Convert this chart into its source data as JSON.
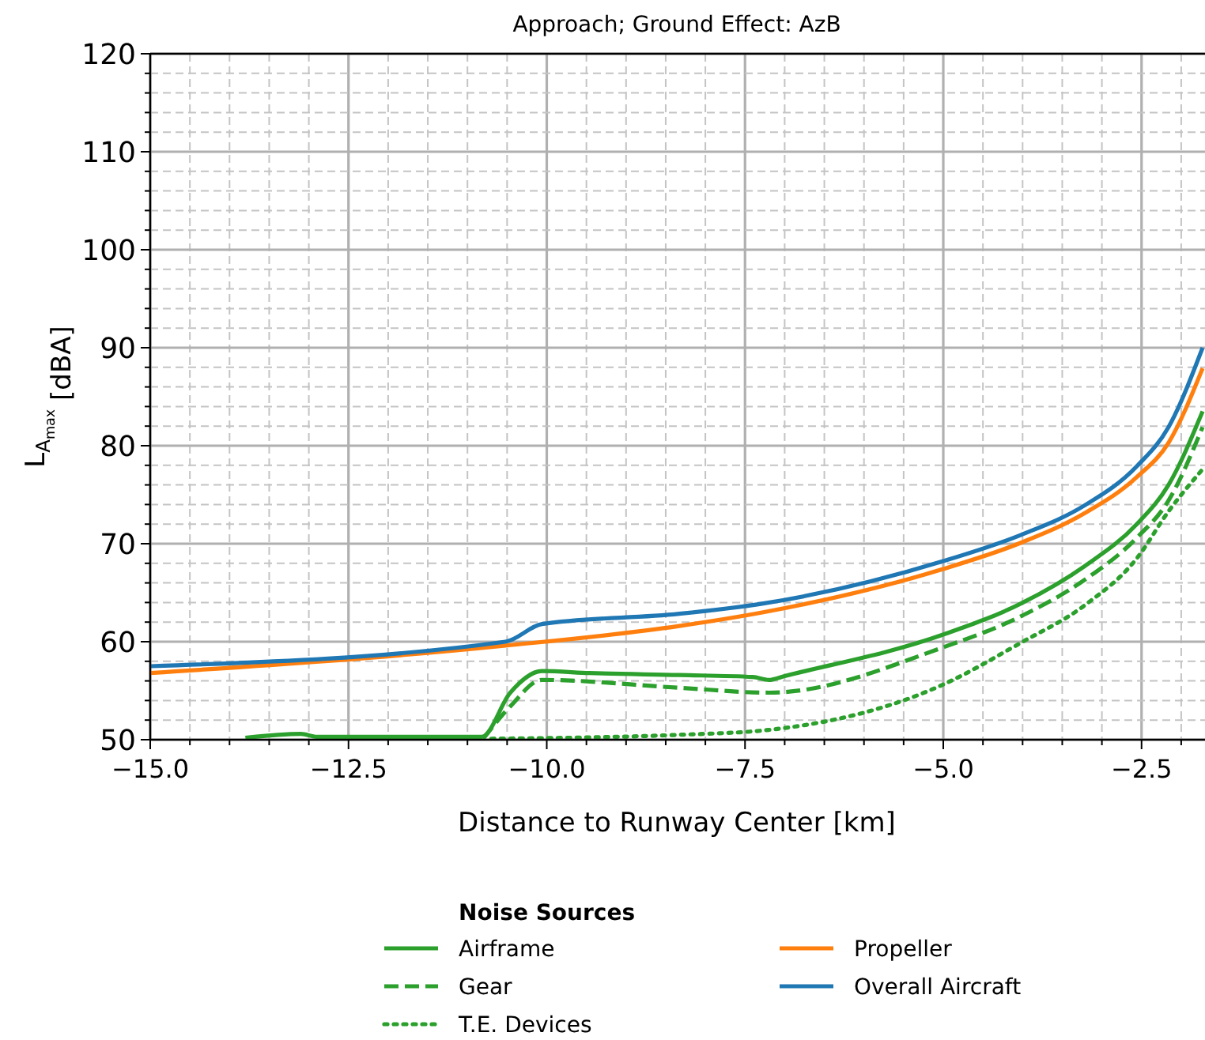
{
  "chart_data": {
    "type": "line",
    "title": "Approach; Ground Effect: AzB",
    "xlabel": "Distance to Runway Center [km]",
    "ylabel": "L$_{A}$$_{max}$ [dBA]",
    "legend_title": "Noise Sources",
    "legend": "bottom",
    "grid": true,
    "xlim": [
      -15,
      -1.7
    ],
    "ylim": [
      50,
      120
    ],
    "xticks": [
      {
        "value": -15,
        "label": "−15.0"
      },
      {
        "value": -14.5,
        "label": null
      },
      {
        "value": -14,
        "label": null
      },
      {
        "value": -13.5,
        "label": null
      },
      {
        "value": -13,
        "label": null
      },
      {
        "value": -12.5,
        "label": "−12.5"
      },
      {
        "value": -12,
        "label": null
      },
      {
        "value": -11.5,
        "label": null
      },
      {
        "value": -11,
        "label": null
      },
      {
        "value": -10.5,
        "label": null
      },
      {
        "value": -10,
        "label": "−10.0"
      },
      {
        "value": -9.5,
        "label": null
      },
      {
        "value": -9,
        "label": null
      },
      {
        "value": -8.5,
        "label": null
      },
      {
        "value": -8,
        "label": null
      },
      {
        "value": -7.5,
        "label": "−7.5"
      },
      {
        "value": -7,
        "label": null
      },
      {
        "value": -6.5,
        "label": null
      },
      {
        "value": -6,
        "label": null
      },
      {
        "value": -5.5,
        "label": null
      },
      {
        "value": -5,
        "label": "−5.0"
      },
      {
        "value": -4.5,
        "label": null
      },
      {
        "value": -4,
        "label": null
      },
      {
        "value": -3.5,
        "label": null
      },
      {
        "value": -3,
        "label": null
      },
      {
        "value": -2.5,
        "label": "−2.5"
      },
      {
        "value": -2,
        "label": null
      }
    ],
    "yticks": [
      50,
      {
        "value": 52,
        "label": null
      },
      {
        "value": 54,
        "label": null
      },
      {
        "value": 56,
        "label": null
      },
      {
        "value": 58,
        "label": null
      },
      60,
      {
        "value": 62,
        "label": null
      },
      {
        "value": 64,
        "label": null
      },
      {
        "value": 66,
        "label": null
      },
      {
        "value": 68,
        "label": null
      },
      70,
      {
        "value": 72,
        "label": null
      },
      {
        "value": 74,
        "label": null
      },
      {
        "value": 76,
        "label": null
      },
      {
        "value": 78,
        "label": null
      },
      80,
      {
        "value": 82,
        "label": null
      },
      {
        "value": 84,
        "label": null
      },
      {
        "value": 86,
        "label": null
      },
      {
        "value": 88,
        "label": null
      },
      90,
      {
        "value": 92,
        "label": null
      },
      {
        "value": 94,
        "label": null
      },
      {
        "value": 96,
        "label": null
      },
      {
        "value": 98,
        "label": null
      },
      100,
      {
        "value": 102,
        "label": null
      },
      {
        "value": 104,
        "label": null
      },
      {
        "value": 106,
        "label": null
      },
      {
        "value": 108,
        "label": null
      },
      110,
      {
        "value": 112,
        "label": null
      },
      {
        "value": 114,
        "label": null
      },
      {
        "value": 116,
        "label": null
      },
      {
        "value": 118,
        "label": null
      },
      120
    ],
    "series": [
      {
        "name": "Airframe",
        "color": "#2ca02c",
        "line_style": "solid",
        "x": [
          -13.8,
          -13.1,
          -12.9,
          -10.82,
          -10.46,
          -10.06,
          -9.46,
          -8.33,
          -7.4,
          -7.2,
          -7.0,
          -5.01,
          -4.02,
          -3.22,
          -2.56,
          -2.16,
          -1.73
        ],
        "values": [
          50.2,
          50.6,
          50.3,
          50.3,
          54.8,
          57.0,
          56.8,
          56.6,
          56.4,
          56.1,
          56.5,
          60.7,
          63.9,
          67.7,
          72.0,
          76.0,
          83.5
        ]
      },
      {
        "name": "Gear",
        "color": "#2ca02c",
        "line_style": "dashed",
        "x": [
          -10.8,
          -10.46,
          -10.06,
          -8.33,
          -7.2,
          -5.01,
          -4.02,
          -3.22,
          -2.56,
          -2.16,
          -1.73
        ],
        "values": [
          50.1,
          53.4,
          56.1,
          55.3,
          54.8,
          59.4,
          62.6,
          66.3,
          70.6,
          74.4,
          81.9
        ]
      },
      {
        "name": "T.E. Devices",
        "color": "#2ca02c",
        "line_style": "dotted",
        "x": [
          -10.7,
          -8.33,
          -7.2,
          -5.01,
          -4.02,
          -3.22,
          -2.56,
          -2.16,
          -1.73
        ],
        "values": [
          50.1,
          50.5,
          51.0,
          55.6,
          59.9,
          63.7,
          68.5,
          73.3,
          77.6
        ]
      },
      {
        "name": "Propeller",
        "color": "#ff7f0e",
        "line_style": "solid",
        "x": [
          -15,
          -10.52,
          -8.33,
          -7.27,
          -5.01,
          -4.02,
          -3.22,
          -2.56,
          -2.16,
          -1.73
        ],
        "values": [
          56.8,
          59.6,
          61.6,
          63.0,
          67.4,
          70.1,
          73.1,
          76.8,
          80.3,
          87.9
        ]
      },
      {
        "name": "Overall Aircraft",
        "color": "#1f77b4",
        "line_style": "solid",
        "x": [
          -15,
          -10.52,
          -10.06,
          -8.33,
          -7.27,
          -5.01,
          -4.02,
          -3.22,
          -2.56,
          -2.16,
          -1.73
        ],
        "values": [
          57.5,
          60.0,
          61.8,
          62.85,
          63.9,
          68.2,
          70.9,
          73.9,
          77.9,
          81.9,
          90.0
        ]
      }
    ]
  }
}
